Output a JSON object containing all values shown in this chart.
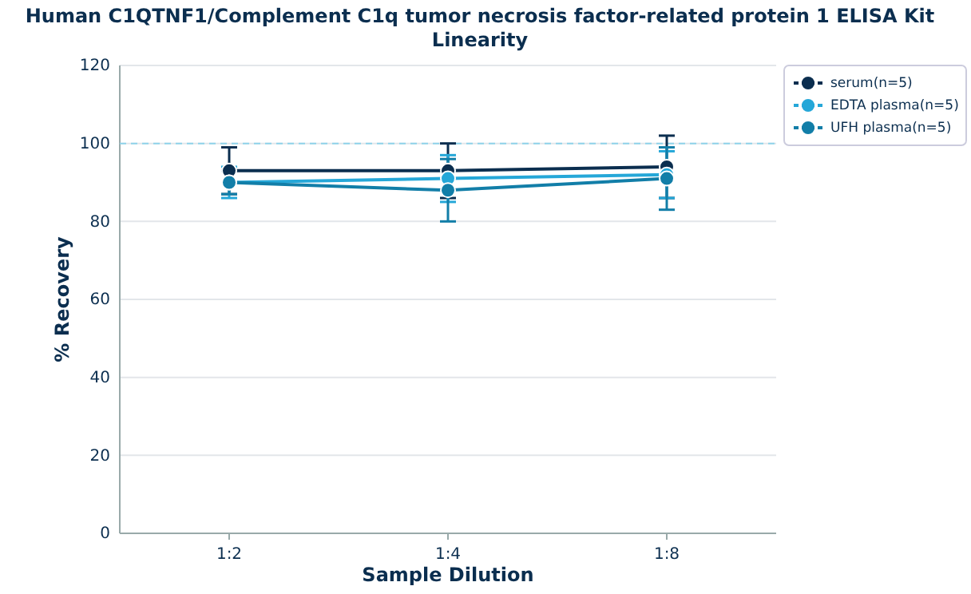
{
  "chart_data": {
    "type": "line",
    "title": "Human C1QTNF1/Complement C1q tumor necrosis factor-related protein 1 ELISA Kit",
    "subtitle": "Linearity",
    "xlabel": "Sample Dilution",
    "ylabel": "% Recovery",
    "categories": [
      "1:2",
      "1:4",
      "1:8"
    ],
    "series": [
      {
        "name": "serum(n=5)",
        "color": "#0b2e4f",
        "values": [
          93,
          93,
          94
        ],
        "errors": [
          6,
          7,
          8
        ]
      },
      {
        "name": "EDTA plasma(n=5)",
        "color": "#25a7d8",
        "values": [
          90,
          91,
          92
        ],
        "errors": [
          4,
          6,
          6
        ]
      },
      {
        "name": "UFH plasma(n=5)",
        "color": "#127ea8",
        "values": [
          90,
          88,
          91
        ],
        "errors": [
          3,
          8,
          8
        ]
      }
    ],
    "ylim": [
      0,
      120
    ],
    "yticks": [
      0,
      20,
      40,
      60,
      80,
      100,
      120
    ],
    "grid": "y",
    "legend": "top right",
    "marker": "circle",
    "line_style": "solid",
    "ref_lines": [
      {
        "axis": "y",
        "value": 100,
        "color": "#8fd3ea",
        "line_style": "dashed"
      }
    ]
  }
}
